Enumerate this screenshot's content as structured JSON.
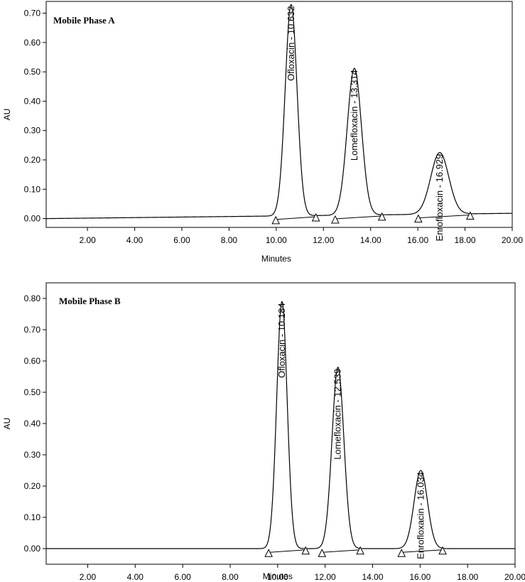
{
  "chart_data": [
    {
      "type": "line",
      "title": "Mobile Phase A",
      "xlabel": "Minutes",
      "ylabel": "AU",
      "xlim": [
        0.25,
        20.0
      ],
      "ylim": [
        -0.03,
        0.74
      ],
      "x_ticks": [
        2.0,
        4.0,
        6.0,
        8.0,
        10.0,
        12.0,
        14.0,
        16.0,
        18.0,
        20.0
      ],
      "x_tick_labels": [
        "2.00",
        "4.00",
        "6.00",
        "8.00",
        "10.00",
        "12.00",
        "14.00",
        "16.00",
        "18.00",
        "20.00"
      ],
      "y_ticks": [
        0.0,
        0.1,
        0.2,
        0.3,
        0.4,
        0.5,
        0.6,
        0.7
      ],
      "y_tick_labels": [
        "0.00",
        "0.10",
        "0.20",
        "0.30",
        "0.40",
        "0.50",
        "0.60",
        "0.70"
      ],
      "baseline": {
        "start": 0.0,
        "end": 0.018
      },
      "series": [
        {
          "name": "chromatogram"
        }
      ],
      "peaks": [
        {
          "name": "Ofloxacin",
          "rt": 10.63,
          "height": 0.72,
          "width": 0.25,
          "label": "Ofloxacin - 10.632",
          "start": 9.98,
          "end": 11.68
        },
        {
          "name": "Lomefloxacin",
          "rt": 13.31,
          "height": 0.5,
          "width": 0.3,
          "label": "Lomefloxacin - 13.314",
          "start": 12.5,
          "end": 14.48
        },
        {
          "name": "Enrofloxacin",
          "rt": 16.93,
          "height": 0.21,
          "width": 0.38,
          "label": "Enrofloxacin - 16.929",
          "start": 16.02,
          "end": 18.22
        }
      ]
    },
    {
      "type": "line",
      "title": "Mobile Phase B",
      "xlabel": "Minutes",
      "ylabel": "AU",
      "xlim": [
        0.25,
        20.0
      ],
      "ylim": [
        -0.05,
        0.85
      ],
      "x_ticks": [
        2.0,
        4.0,
        6.0,
        8.0,
        10.0,
        12.0,
        14.0,
        16.0,
        18.0,
        20.0
      ],
      "x_tick_labels": [
        "2.00",
        "4.00",
        "6.00",
        "8.00",
        "10.00",
        "12.00",
        "14.00",
        "16.00",
        "18.00",
        "20.00"
      ],
      "y_ticks": [
        0.0,
        0.1,
        0.2,
        0.3,
        0.4,
        0.5,
        0.6,
        0.7,
        0.8
      ],
      "y_tick_labels": [
        "0.00",
        "0.10",
        "0.20",
        "0.30",
        "0.40",
        "0.50",
        "0.60",
        "0.70",
        "0.80"
      ],
      "baseline": {
        "start": 0.0,
        "end": 0.0
      },
      "series": [
        {
          "name": "chromatogram"
        }
      ],
      "peaks": [
        {
          "name": "Ofloxacin",
          "rt": 10.18,
          "height": 0.79,
          "width": 0.22,
          "label": "Ofloxacin - 10.184",
          "start": 9.62,
          "end": 11.18
        },
        {
          "name": "Lomefloxacin",
          "rt": 12.54,
          "height": 0.58,
          "width": 0.25,
          "label": "Lomefloxacin - 12.539",
          "start": 11.87,
          "end": 13.48
        },
        {
          "name": "Enrofloxacin",
          "rt": 16.03,
          "height": 0.25,
          "width": 0.28,
          "label": "Enrofloxacin - 16.034",
          "start": 15.22,
          "end": 16.95
        }
      ]
    }
  ]
}
